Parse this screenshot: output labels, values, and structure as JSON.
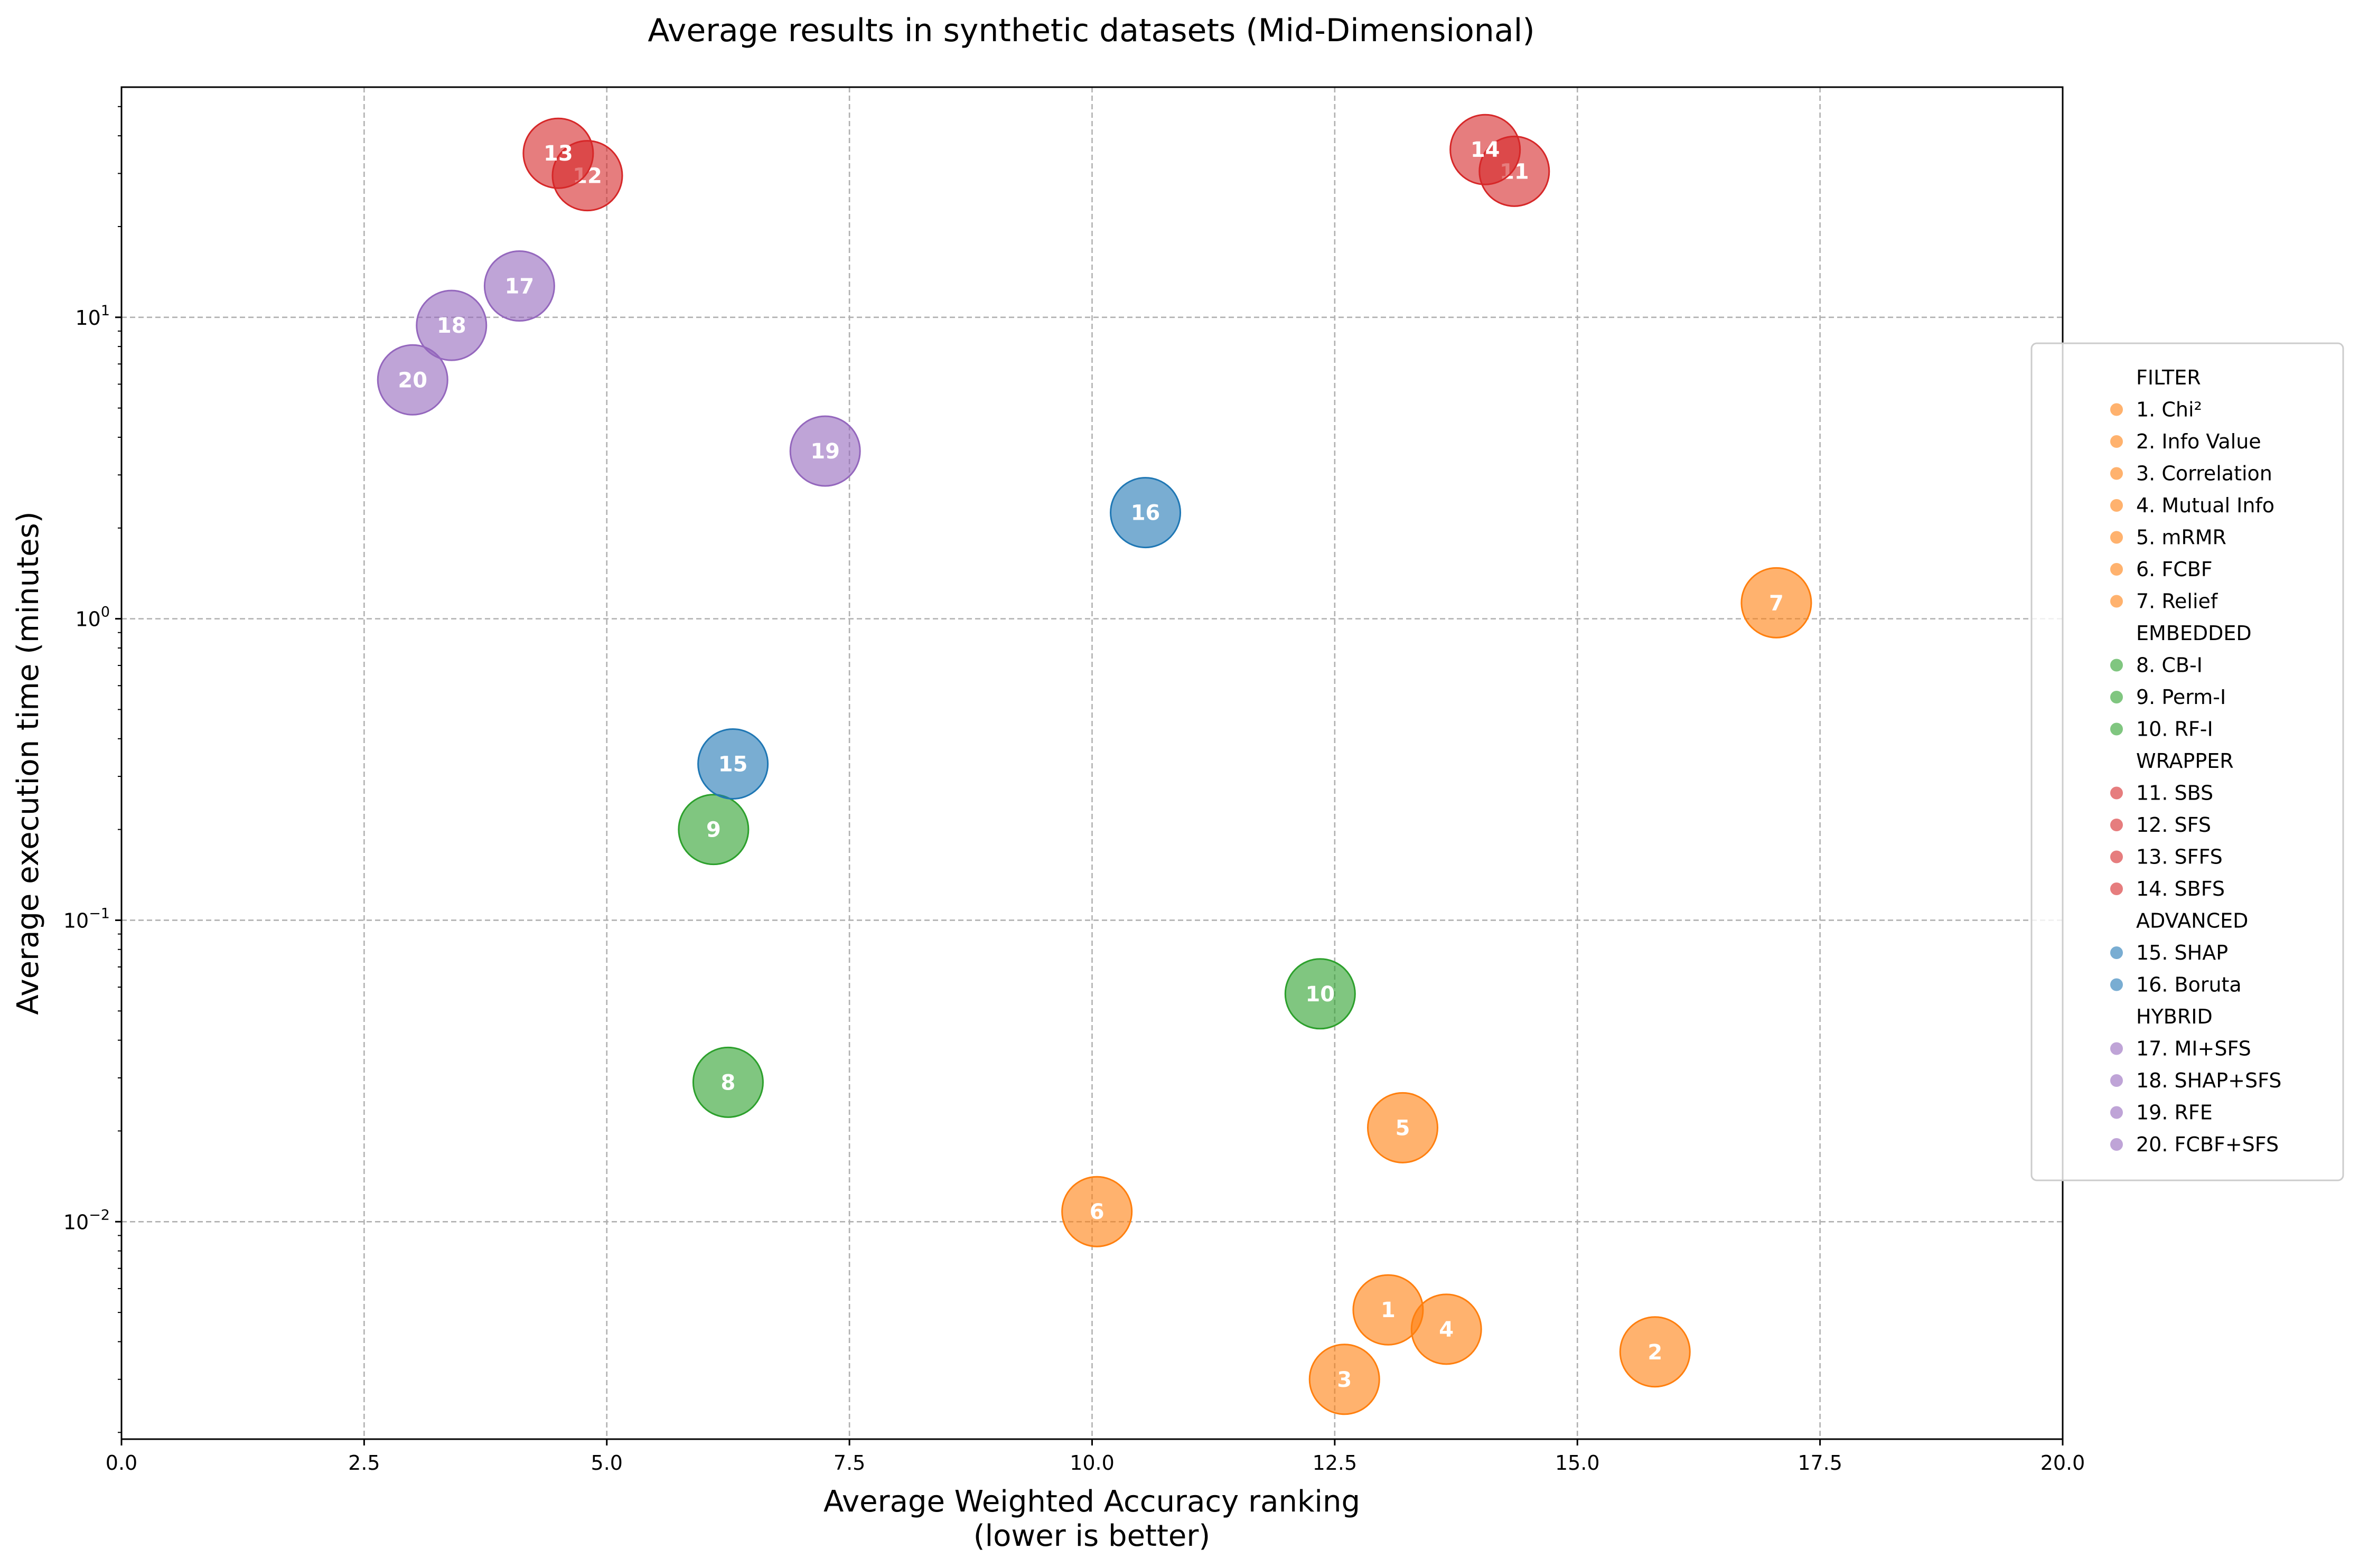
{
  "chart_data": {
    "type": "scatter",
    "title": "Average results in synthetic datasets (Mid-Dimensional)",
    "xlabel": [
      "Average Weighted Accuracy ranking",
      "(lower is better)"
    ],
    "ylabel": "Average execution time (minutes)",
    "xlim": [
      0,
      20
    ],
    "ylim": [
      0.0019,
      58
    ],
    "yscale": "log",
    "grid": true,
    "legend_position": "right",
    "x_ticks": [
      "0.0",
      "2.5",
      "5.0",
      "7.5",
      "10.0",
      "12.5",
      "15.0",
      "17.5",
      "20.0"
    ],
    "y_ticks": [
      {
        "base": "10",
        "exp": "1"
      },
      {
        "base": "10",
        "exp": "0"
      },
      {
        "base": "10",
        "exp": "−1"
      },
      {
        "base": "10",
        "exp": "−2"
      }
    ],
    "groups": [
      {
        "name": "FILTER",
        "color": "#ff7f0e"
      },
      {
        "name": "EMBEDDED",
        "color": "#2ca02c"
      },
      {
        "name": "WRAPPER",
        "color": "#d62728"
      },
      {
        "name": "ADVANCED",
        "color": "#1f77b4"
      },
      {
        "name": "HYBRID",
        "color": "#9467bd"
      }
    ],
    "points": [
      {
        "id": "1",
        "legend": "1. Chi²",
        "group": "FILTER",
        "x": 13.05,
        "y": 0.0051
      },
      {
        "id": "2",
        "legend": "2. Info Value",
        "group": "FILTER",
        "x": 15.8,
        "y": 0.0037
      },
      {
        "id": "3",
        "legend": "3. Correlation",
        "group": "FILTER",
        "x": 12.6,
        "y": 0.003
      },
      {
        "id": "4",
        "legend": "4. Mutual Info",
        "group": "FILTER",
        "x": 13.65,
        "y": 0.0044
      },
      {
        "id": "5",
        "legend": "5. mRMR",
        "group": "FILTER",
        "x": 13.2,
        "y": 0.0205
      },
      {
        "id": "6",
        "legend": "6. FCBF",
        "group": "FILTER",
        "x": 10.05,
        "y": 0.0108
      },
      {
        "id": "7",
        "legend": "7. Relief",
        "group": "FILTER",
        "x": 17.05,
        "y": 1.13
      },
      {
        "id": "8",
        "legend": "8. CB-I",
        "group": "EMBEDDED",
        "x": 6.25,
        "y": 0.029
      },
      {
        "id": "9",
        "legend": "9. Perm-I",
        "group": "EMBEDDED",
        "x": 6.1,
        "y": 0.2
      },
      {
        "id": "10",
        "legend": "10. RF-I",
        "group": "EMBEDDED",
        "x": 12.35,
        "y": 0.057
      },
      {
        "id": "11",
        "legend": "11. SBS",
        "group": "WRAPPER",
        "x": 14.35,
        "y": 30.5
      },
      {
        "id": "12",
        "legend": "12. SFS",
        "group": "WRAPPER",
        "x": 4.8,
        "y": 29.5
      },
      {
        "id": "13",
        "legend": "13. SFFS",
        "group": "WRAPPER",
        "x": 4.5,
        "y": 35
      },
      {
        "id": "14",
        "legend": "14. SBFS",
        "group": "WRAPPER",
        "x": 14.05,
        "y": 36
      },
      {
        "id": "15",
        "legend": "15. SHAP",
        "group": "ADVANCED",
        "x": 6.3,
        "y": 0.33
      },
      {
        "id": "16",
        "legend": "16. Boruta",
        "group": "ADVANCED",
        "x": 10.55,
        "y": 2.25
      },
      {
        "id": "17",
        "legend": "17. MI+SFS",
        "group": "HYBRID",
        "x": 4.1,
        "y": 12.7
      },
      {
        "id": "18",
        "legend": "18. SHAP+SFS",
        "group": "HYBRID",
        "x": 3.4,
        "y": 9.4
      },
      {
        "id": "19",
        "legend": "19. RFE",
        "group": "HYBRID",
        "x": 7.25,
        "y": 3.6
      },
      {
        "id": "20",
        "legend": "20. FCBF+SFS",
        "group": "HYBRID",
        "x": 3.0,
        "y": 6.2
      }
    ]
  }
}
